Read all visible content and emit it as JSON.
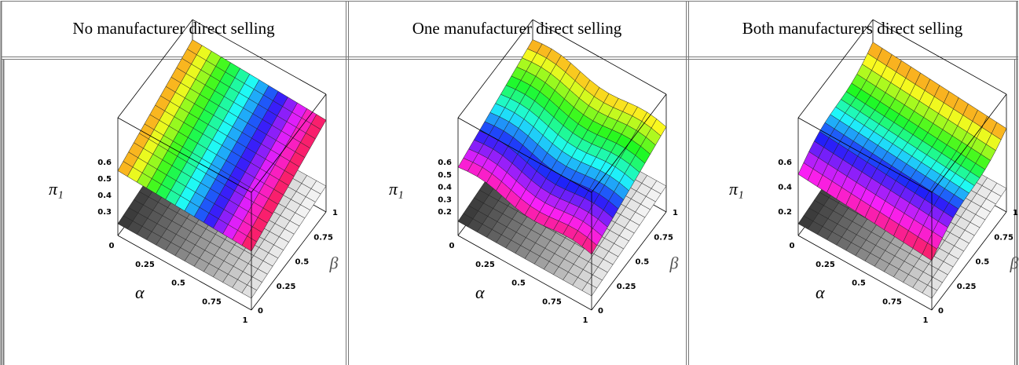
{
  "table": {
    "headers": [
      "No manufacturer direct selling",
      "One manufacturer direct selling",
      "Both manufacturers direct selling"
    ],
    "panels": [
      {
        "z_label": "π₁",
        "z_ticks": [
          "0.6",
          "0.5",
          "0.4",
          "0.3"
        ],
        "x_label": "α",
        "x_ticks": [
          "0",
          "0.25",
          "0.5",
          "0.75",
          "1"
        ],
        "y_label": "β",
        "y_ticks": [
          "0",
          "0.25",
          "0.5",
          "0.75",
          "1"
        ]
      },
      {
        "z_label": "π₁",
        "z_ticks": [
          "0.6",
          "0.5",
          "0.4",
          "0.3",
          "0.2"
        ],
        "x_label": "α",
        "x_ticks": [
          "0",
          "0.25",
          "0.5",
          "0.75",
          "1"
        ],
        "y_label": "β",
        "y_ticks": [
          "0",
          "0.25",
          "0.5",
          "0.75",
          "1"
        ]
      },
      {
        "z_label": "π₁",
        "z_ticks": [
          "0.6",
          "0.4",
          "0.2"
        ],
        "x_label": "α",
        "x_ticks": [
          "0",
          "0.25",
          "0.5",
          "0.75",
          "1"
        ],
        "y_label": "β",
        "y_ticks": [
          "0",
          "0.25",
          "0.5",
          "0.75",
          "1"
        ]
      }
    ]
  }
}
